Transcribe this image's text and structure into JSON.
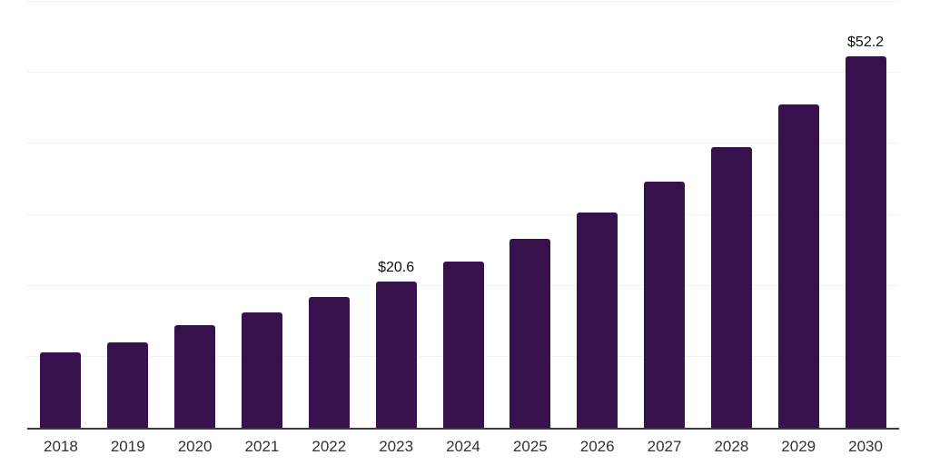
{
  "chart_data": {
    "type": "bar",
    "title": "",
    "xlabel": "",
    "ylabel": "",
    "categories": [
      "2018",
      "2019",
      "2020",
      "2021",
      "2022",
      "2023",
      "2024",
      "2025",
      "2026",
      "2027",
      "2028",
      "2029",
      "2030"
    ],
    "values": [
      10.6,
      12.0,
      14.4,
      16.2,
      18.4,
      20.6,
      23.4,
      26.6,
      30.2,
      34.6,
      39.5,
      45.4,
      52.2
    ],
    "point_labels": [
      "",
      "",
      "",
      "",
      "",
      "$20.6",
      "",
      "",
      "",
      "",
      "",
      "",
      "$52.2"
    ],
    "ylim": [
      0,
      60
    ],
    "gridline_values": [
      10,
      20,
      30,
      40,
      50,
      60
    ],
    "grid": "horizontal",
    "legend_position": "none",
    "colors": {
      "bar": "#36114B",
      "axis_line": "#3a3a3a",
      "gridline": "#f1f1f1",
      "tick_label": "#333333",
      "value_label": "#0d0d0d",
      "background": "#ffffff"
    }
  }
}
